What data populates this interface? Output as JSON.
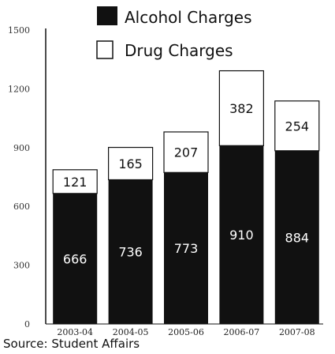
{
  "chart_data": {
    "type": "bar",
    "stacked": true,
    "categories": [
      "2003-04",
      "2004-05",
      "2005-06",
      "2006-07",
      "2007-08"
    ],
    "series": [
      {
        "name": "Alcohol Charges",
        "values": [
          666,
          736,
          773,
          910,
          884
        ],
        "color": "#111111"
      },
      {
        "name": "Drug Charges",
        "values": [
          121,
          165,
          207,
          382,
          254
        ],
        "color": "#ffffff"
      }
    ],
    "ylim": [
      0,
      1500
    ],
    "yticks": [
      0,
      300,
      600,
      900,
      1200,
      1500
    ],
    "xlabel": "",
    "ylabel": "",
    "legend_position": "top-right",
    "grid": false
  },
  "source_text": "Source: Student Affairs"
}
